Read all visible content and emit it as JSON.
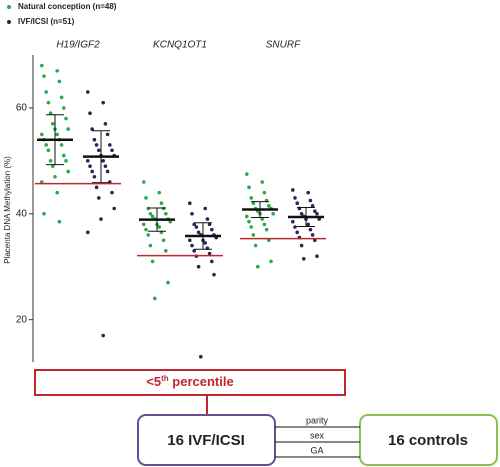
{
  "chart_data": {
    "type": "strip",
    "y_label": "Placenta DNA Methylation (%)",
    "ylim": [
      12,
      70
    ],
    "yticks": [
      20,
      40,
      60
    ],
    "categories": [
      "H19/IGF2",
      "KCNQ1OT1",
      "SNURF"
    ],
    "series": [
      {
        "name": "Natural conception (n=48)",
        "color": "#2aa84a",
        "values": [
          [
            68,
            67,
            66,
            65,
            63,
            62,
            61,
            60,
            59,
            58,
            57,
            56,
            56,
            55,
            55,
            54,
            54,
            53,
            53,
            52,
            51,
            50,
            50,
            49,
            48,
            47,
            46,
            44,
            40,
            38.5
          ],
          [
            46,
            44,
            43,
            42,
            41,
            41,
            40,
            40,
            39.5,
            39,
            39,
            38.5,
            38,
            38,
            37.5,
            37,
            36.5,
            36,
            35,
            34,
            33,
            31,
            27,
            24
          ],
          [
            47.5,
            46,
            45,
            44,
            43,
            42.5,
            42,
            41.5,
            41,
            41,
            40.5,
            40,
            40,
            39.5,
            39,
            38.5,
            38,
            37.5,
            37,
            36,
            35,
            34,
            31,
            30
          ]
        ],
        "mean": [
          54,
          38.9,
          40.8
        ],
        "sd": [
          4.7,
          2.2,
          1.5
        ]
      },
      {
        "name": "IVF/ICSI (n=51)",
        "color": "#2b2455",
        "values": [
          [
            63,
            61,
            59,
            57,
            56,
            55,
            54,
            53,
            53,
            52,
            52,
            51,
            51,
            50,
            50,
            49,
            49,
            48,
            48,
            47,
            46,
            45,
            44,
            43,
            41,
            39,
            36.5,
            17
          ],
          [
            42,
            41,
            40,
            39,
            38,
            38,
            37.5,
            37,
            36.5,
            36,
            36,
            35.5,
            35,
            35,
            34.5,
            34,
            33.5,
            33,
            32.5,
            32,
            31,
            30,
            28.5,
            13
          ],
          [
            44.5,
            44,
            43,
            42.5,
            42,
            41.5,
            41,
            40.5,
            40,
            40,
            39.5,
            39,
            39,
            38.5,
            38,
            37.5,
            37,
            36.5,
            36,
            35.5,
            35,
            34,
            32,
            31.5
          ]
        ],
        "mean": [
          50.8,
          35.8,
          39.4
        ],
        "sd": [
          4.9,
          2.5,
          1.8
        ]
      }
    ],
    "threshold": {
      "color": "#c0272d",
      "values": [
        45.7,
        32.1,
        35.3
      ]
    }
  },
  "diagram": {
    "threshold_box": {
      "prefix": "<5",
      "sup": "th",
      "suffix": " percentile"
    },
    "case_box": "16 IVF/ICSI",
    "control_box": "16 controls",
    "matching": [
      "parity",
      "sex",
      "GA"
    ]
  }
}
